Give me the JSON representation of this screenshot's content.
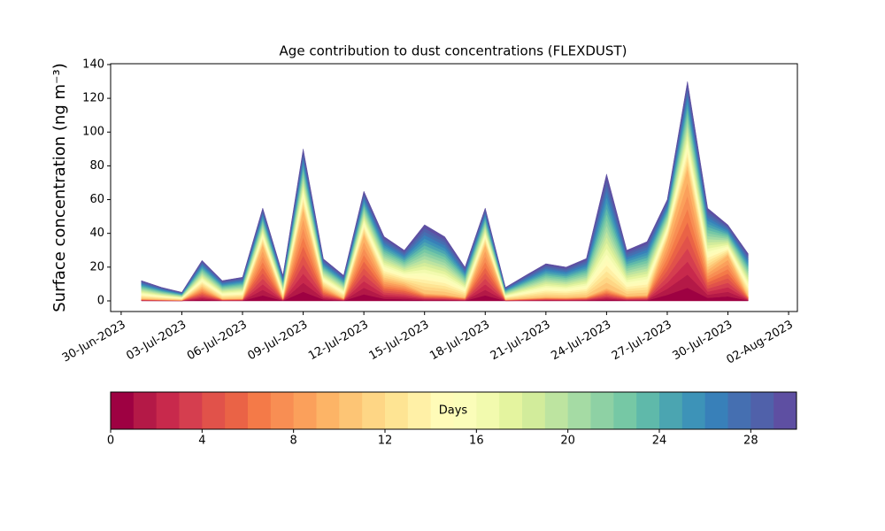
{
  "chart_data": {
    "type": "stacked_area",
    "title": "Age contribution to dust concentrations (FLEXDUST)",
    "ylabel": "Surface concentration (ng m⁻³)",
    "x": [
      "2023-07-01",
      "2023-07-02",
      "2023-07-03",
      "2023-07-04",
      "2023-07-05",
      "2023-07-06",
      "2023-07-07",
      "2023-07-08",
      "2023-07-09",
      "2023-07-10",
      "2023-07-11",
      "2023-07-12",
      "2023-07-13",
      "2023-07-14",
      "2023-07-15",
      "2023-07-16",
      "2023-07-17",
      "2023-07-18",
      "2023-07-19",
      "2023-07-20",
      "2023-07-21",
      "2023-07-22",
      "2023-07-23",
      "2023-07-24",
      "2023-07-25",
      "2023-07-26",
      "2023-07-27",
      "2023-07-28",
      "2023-07-29",
      "2023-07-30",
      "2023-07-31"
    ],
    "xlim": [
      "2023-06-29T11:30",
      "2023-08-02T10:25"
    ],
    "xticks": [
      {
        "value": "2023-06-30",
        "label": "30-Jun-2023"
      },
      {
        "value": "2023-07-03",
        "label": "03-Jul-2023"
      },
      {
        "value": "2023-07-06",
        "label": "06-Jul-2023"
      },
      {
        "value": "2023-07-09",
        "label": "09-Jul-2023"
      },
      {
        "value": "2023-07-12",
        "label": "12-Jul-2023"
      },
      {
        "value": "2023-07-15",
        "label": "15-Jul-2023"
      },
      {
        "value": "2023-07-18",
        "label": "18-Jul-2023"
      },
      {
        "value": "2023-07-21",
        "label": "21-Jul-2023"
      },
      {
        "value": "2023-07-24",
        "label": "24-Jul-2023"
      },
      {
        "value": "2023-07-27",
        "label": "27-Jul-2023"
      },
      {
        "value": "2023-07-30",
        "label": "30-Jul-2023"
      },
      {
        "value": "2023-08-02",
        "label": "02-Aug-2023"
      }
    ],
    "ylim": [
      -6.3,
      140.5
    ],
    "yticks": [
      0,
      20,
      40,
      60,
      80,
      100,
      120,
      140
    ],
    "series": [
      {
        "color": "#9e0142",
        "values": [
          0.12,
          0.08,
          0.05,
          0.8,
          0.12,
          0.14,
          3.3,
          0.15,
          5.4,
          0.83,
          0.15,
          3.9,
          1.27,
          1,
          0.45,
          0.38,
          0.2,
          3.3,
          0.08,
          0.15,
          0.22,
          0.2,
          0.25,
          0.75,
          0.3,
          0.35,
          3.6,
          7.8,
          1.83,
          2.7,
          0.28
        ]
      },
      {
        "color": "#b41947",
        "values": [
          0.12,
          0.08,
          0.05,
          0.8,
          0.12,
          0.14,
          3.3,
          0.15,
          5.4,
          0.83,
          0.15,
          3.9,
          1.27,
          1,
          0.45,
          0.38,
          0.2,
          3.3,
          0.08,
          0.15,
          0.22,
          0.2,
          0.25,
          0.75,
          0.3,
          0.35,
          3.6,
          7.8,
          1.83,
          2.7,
          0.28
        ]
      },
      {
        "color": "#c8294c",
        "values": [
          0.12,
          0.08,
          0.05,
          0.8,
          0.12,
          0.14,
          3.3,
          0.15,
          5.4,
          0.83,
          0.15,
          3.9,
          1.27,
          1,
          0.45,
          0.38,
          0.2,
          3.3,
          0.08,
          0.15,
          0.22,
          0.2,
          0.25,
          0.75,
          0.3,
          0.35,
          3.6,
          7.8,
          1.83,
          2.7,
          0.28
        ]
      },
      {
        "color": "#d53e4f",
        "values": [
          0.12,
          0.08,
          0.05,
          0.8,
          0.12,
          0.14,
          3.3,
          0.15,
          5.4,
          0.83,
          0.15,
          3.9,
          1.27,
          1,
          0.45,
          0.38,
          0.2,
          3.3,
          0.08,
          0.15,
          0.22,
          0.2,
          0.25,
          0.75,
          0.3,
          0.35,
          3.6,
          7.8,
          1.83,
          2.7,
          0.28
        ]
      },
      {
        "color": "#e1524a",
        "values": [
          0.12,
          0.08,
          0.05,
          0.8,
          0.12,
          0.14,
          3.3,
          0.15,
          5.4,
          0.83,
          0.15,
          3.9,
          1.27,
          1,
          0.45,
          0.38,
          0.2,
          3.3,
          0.08,
          0.15,
          0.22,
          0.2,
          0.25,
          0.75,
          0.3,
          0.35,
          3.6,
          7.8,
          1.83,
          2.7,
          0.28
        ]
      },
      {
        "color": "#ea6346",
        "values": [
          0.12,
          0.08,
          0.05,
          0.8,
          0.12,
          0.14,
          3.3,
          0.15,
          5.4,
          0.83,
          0.15,
          3.9,
          1.27,
          1,
          0.45,
          0.38,
          0.2,
          3.3,
          0.08,
          0.15,
          0.22,
          0.2,
          0.25,
          0.75,
          0.3,
          0.35,
          3.6,
          7.8,
          1.83,
          2.7,
          0.28
        ]
      },
      {
        "color": "#f47a48",
        "values": [
          0.12,
          0.08,
          0.05,
          0.8,
          0.12,
          0.14,
          3.3,
          0.15,
          5.4,
          0.83,
          0.15,
          3.9,
          1.27,
          1,
          0.45,
          0.38,
          0.2,
          3.3,
          0.08,
          0.15,
          0.22,
          0.2,
          0.25,
          0.75,
          0.3,
          0.35,
          3.6,
          7.8,
          1.83,
          2.7,
          0.28
        ]
      },
      {
        "color": "#f88e53",
        "values": [
          0.12,
          0.08,
          0.05,
          0.8,
          0.12,
          0.14,
          3.3,
          0.15,
          5.4,
          0.83,
          0.15,
          3.9,
          1.27,
          1,
          0.45,
          0.38,
          0.2,
          3.3,
          0.08,
          0.15,
          0.22,
          0.2,
          0.25,
          0.75,
          0.3,
          0.35,
          3.6,
          7.8,
          1.83,
          2.7,
          0.28
        ]
      },
      {
        "color": "#fba05b",
        "values": [
          0.12,
          0.08,
          0.05,
          0.8,
          0.12,
          0.14,
          3.3,
          0.15,
          5.4,
          0.83,
          0.15,
          3.9,
          1.27,
          1,
          0.45,
          0.38,
          0.2,
          3.3,
          0.08,
          0.15,
          0.22,
          0.2,
          0.25,
          0.75,
          0.3,
          0.35,
          3.6,
          7.8,
          1.83,
          2.7,
          0.28
        ]
      },
      {
        "color": "#fdb466",
        "values": [
          0.12,
          0.08,
          0.05,
          0.8,
          0.12,
          0.14,
          3.3,
          0.15,
          5.4,
          0.83,
          0.15,
          3.9,
          1.27,
          1,
          0.45,
          0.38,
          0.2,
          3.3,
          0.08,
          0.15,
          0.22,
          0.2,
          0.25,
          0.75,
          0.3,
          0.35,
          3.6,
          7.8,
          1.83,
          2.7,
          0.28
        ]
      },
      {
        "color": "#fdc575",
        "values": [
          0.54,
          0.36,
          0.23,
          0.8,
          0.54,
          0.63,
          1.1,
          0.68,
          1.8,
          0.83,
          0.68,
          1.3,
          1.27,
          1,
          2.03,
          1.71,
          0.9,
          1.1,
          0.36,
          0.68,
          0.99,
          0.9,
          1.13,
          3.38,
          1.35,
          1.58,
          1.2,
          2.6,
          1.83,
          0.9,
          1.26
        ]
      },
      {
        "color": "#fed685",
        "values": [
          0.54,
          0.36,
          0.23,
          0.8,
          0.54,
          0.63,
          1.1,
          0.68,
          1.8,
          0.83,
          0.68,
          1.3,
          1.27,
          1,
          2.03,
          1.71,
          0.9,
          1.1,
          0.36,
          0.68,
          0.99,
          0.9,
          1.13,
          3.38,
          1.35,
          1.58,
          1.2,
          2.6,
          1.83,
          0.9,
          1.26
        ]
      },
      {
        "color": "#fee493",
        "values": [
          0.54,
          0.36,
          0.23,
          0.8,
          0.54,
          0.63,
          1.1,
          0.68,
          1.8,
          0.83,
          0.68,
          1.3,
          1.27,
          1,
          2.03,
          1.71,
          0.9,
          1.1,
          0.36,
          0.68,
          0.99,
          0.9,
          1.13,
          3.38,
          1.35,
          1.58,
          1.2,
          2.6,
          1.83,
          0.9,
          1.26
        ]
      },
      {
        "color": "#fff0a6",
        "values": [
          0.54,
          0.36,
          0.23,
          0.8,
          0.54,
          0.63,
          1.1,
          0.68,
          1.8,
          0.83,
          0.68,
          1.3,
          1.27,
          1,
          2.03,
          1.71,
          0.9,
          1.1,
          0.36,
          0.68,
          0.99,
          0.9,
          1.13,
          3.38,
          1.35,
          1.58,
          1.2,
          2.6,
          1.83,
          0.9,
          1.26
        ]
      },
      {
        "color": "#fffbb8",
        "values": [
          0.54,
          0.36,
          0.23,
          0.8,
          0.54,
          0.63,
          1.1,
          0.68,
          1.8,
          0.83,
          0.68,
          1.3,
          1.27,
          1,
          2.03,
          1.71,
          0.9,
          1.1,
          0.36,
          0.68,
          0.99,
          0.9,
          1.13,
          3.38,
          1.35,
          1.58,
          1.2,
          2.6,
          1.83,
          0.9,
          1.26
        ]
      },
      {
        "color": "#fbfdb9",
        "values": [
          0.54,
          0.36,
          0.23,
          0.8,
          0.54,
          0.63,
          1.1,
          0.68,
          1.8,
          0.83,
          0.68,
          1.3,
          1.27,
          1,
          2.03,
          1.71,
          0.9,
          1.1,
          0.36,
          0.68,
          0.99,
          0.9,
          1.13,
          3.38,
          1.35,
          1.58,
          1.2,
          2.6,
          1.83,
          0.9,
          1.26
        ]
      },
      {
        "color": "#f2faae",
        "values": [
          0.54,
          0.36,
          0.23,
          0.8,
          0.54,
          0.63,
          1.1,
          0.68,
          1.8,
          0.83,
          0.68,
          1.3,
          1.27,
          1,
          2.03,
          1.71,
          0.9,
          1.1,
          0.36,
          0.68,
          0.99,
          0.9,
          1.13,
          3.38,
          1.35,
          1.58,
          1.2,
          2.6,
          1.83,
          0.9,
          1.26
        ]
      },
      {
        "color": "#e4f49f",
        "values": [
          0.54,
          0.36,
          0.23,
          0.8,
          0.54,
          0.63,
          1.1,
          0.68,
          1.8,
          0.83,
          0.68,
          1.3,
          1.27,
          1,
          2.03,
          1.71,
          0.9,
          1.1,
          0.36,
          0.68,
          0.99,
          0.9,
          1.13,
          3.38,
          1.35,
          1.58,
          1.2,
          2.6,
          1.83,
          0.9,
          1.26
        ]
      },
      {
        "color": "#d2ec9b",
        "values": [
          0.54,
          0.36,
          0.23,
          0.8,
          0.54,
          0.63,
          1.1,
          0.68,
          1.8,
          0.83,
          0.68,
          1.3,
          1.27,
          1,
          2.03,
          1.71,
          0.9,
          1.1,
          0.36,
          0.68,
          0.99,
          0.9,
          1.13,
          3.38,
          1.35,
          1.58,
          1.2,
          2.6,
          1.83,
          0.9,
          1.26
        ]
      },
      {
        "color": "#bde4a0",
        "values": [
          0.54,
          0.36,
          0.23,
          0.8,
          0.54,
          0.63,
          1.1,
          0.68,
          1.8,
          0.83,
          0.68,
          1.3,
          1.27,
          1,
          2.03,
          1.71,
          0.9,
          1.1,
          0.36,
          0.68,
          0.99,
          0.9,
          1.13,
          3.38,
          1.35,
          1.58,
          1.2,
          2.6,
          1.83,
          0.9,
          1.26
        ]
      },
      {
        "color": "#a5dba4",
        "values": [
          0.54,
          0.36,
          0.23,
          0.8,
          0.54,
          0.63,
          1.1,
          0.68,
          1.8,
          0.83,
          0.68,
          1.3,
          1.27,
          1,
          2.03,
          1.71,
          0.9,
          1.1,
          0.36,
          0.68,
          0.99,
          0.9,
          1.13,
          3.38,
          1.35,
          1.58,
          1.2,
          2.6,
          1.83,
          0.9,
          1.26
        ]
      },
      {
        "color": "#8ed1a4",
        "values": [
          0.54,
          0.36,
          0.23,
          0.8,
          0.54,
          0.63,
          1.1,
          0.68,
          1.8,
          0.83,
          0.68,
          1.3,
          1.27,
          1,
          2.03,
          1.71,
          0.9,
          1.1,
          0.36,
          0.68,
          0.99,
          0.9,
          1.13,
          3.38,
          1.35,
          1.58,
          1.2,
          2.6,
          1.83,
          0.9,
          1.26
        ]
      },
      {
        "color": "#76c8a5",
        "values": [
          0.54,
          0.36,
          0.23,
          0.8,
          0.54,
          0.63,
          1.1,
          0.68,
          1.8,
          0.83,
          0.68,
          1.3,
          1.27,
          1,
          2.03,
          1.71,
          0.9,
          1.1,
          0.36,
          0.68,
          0.99,
          0.9,
          1.13,
          3.38,
          1.35,
          1.58,
          1.2,
          2.6,
          1.83,
          0.9,
          1.26
        ]
      },
      {
        "color": "#5fb9aa",
        "values": [
          0.54,
          0.36,
          0.23,
          0.8,
          0.54,
          0.63,
          1.1,
          0.68,
          1.8,
          0.83,
          0.68,
          1.3,
          1.27,
          1,
          2.03,
          1.71,
          0.9,
          1.1,
          0.36,
          0.68,
          0.99,
          0.9,
          1.13,
          3.38,
          1.35,
          1.58,
          1.2,
          2.6,
          1.83,
          0.9,
          1.26
        ]
      },
      {
        "color": "#4ba5b1",
        "values": [
          0.54,
          0.36,
          0.23,
          0.8,
          0.54,
          0.63,
          1.1,
          0.68,
          1.8,
          0.83,
          0.68,
          1.3,
          1.27,
          1,
          2.03,
          1.71,
          0.9,
          1.1,
          0.36,
          0.68,
          0.99,
          0.9,
          1.13,
          3.38,
          1.35,
          1.58,
          1.2,
          2.6,
          1.83,
          0.9,
          1.26
        ]
      },
      {
        "color": "#3d93b8",
        "values": [
          0.54,
          0.36,
          0.23,
          0.8,
          0.54,
          0.63,
          1.1,
          0.68,
          1.8,
          0.83,
          0.68,
          1.3,
          1.27,
          1,
          2.03,
          1.71,
          0.9,
          1.1,
          0.36,
          0.68,
          0.99,
          0.9,
          1.13,
          3.38,
          1.35,
          1.58,
          1.2,
          2.6,
          1.83,
          0.9,
          1.26
        ]
      },
      {
        "color": "#3880b9",
        "values": [
          0.54,
          0.36,
          0.23,
          0.8,
          0.54,
          0.63,
          1.1,
          0.68,
          1.8,
          0.83,
          0.68,
          1.3,
          1.27,
          1,
          2.03,
          1.71,
          0.9,
          1.1,
          0.36,
          0.68,
          0.99,
          0.9,
          1.13,
          3.38,
          1.35,
          1.58,
          1.2,
          2.6,
          1.83,
          0.9,
          1.26
        ]
      },
      {
        "color": "#456fb1",
        "values": [
          0.54,
          0.36,
          0.23,
          0.8,
          0.54,
          0.63,
          1.1,
          0.68,
          1.8,
          0.83,
          0.68,
          1.3,
          1.27,
          1,
          2.03,
          1.71,
          0.9,
          1.1,
          0.36,
          0.68,
          0.99,
          0.9,
          1.13,
          3.38,
          1.35,
          1.58,
          1.2,
          2.6,
          1.83,
          0.9,
          1.26
        ]
      },
      {
        "color": "#5061aa",
        "values": [
          0.54,
          0.36,
          0.23,
          0.8,
          0.54,
          0.63,
          1.1,
          0.68,
          1.8,
          0.83,
          0.68,
          1.3,
          1.27,
          1,
          2.03,
          1.71,
          0.9,
          1.1,
          0.36,
          0.68,
          0.99,
          0.9,
          1.13,
          3.38,
          1.35,
          1.58,
          1.2,
          2.6,
          1.83,
          0.9,
          1.26
        ]
      },
      {
        "color": "#5e4fa2",
        "values": [
          0.54,
          0.36,
          0.23,
          0.8,
          0.54,
          0.63,
          1.1,
          0.68,
          1.8,
          0.83,
          0.68,
          1.3,
          1.27,
          1,
          2.03,
          1.71,
          0.9,
          1.1,
          0.36,
          0.68,
          0.99,
          0.9,
          1.13,
          3.38,
          1.35,
          1.58,
          1.2,
          2.6,
          1.83,
          0.9,
          1.26
        ]
      }
    ],
    "colorbar": {
      "label": "Days",
      "lim": [
        0,
        30
      ],
      "ticks": [
        0,
        4,
        8,
        12,
        16,
        20,
        24,
        28
      ]
    }
  }
}
